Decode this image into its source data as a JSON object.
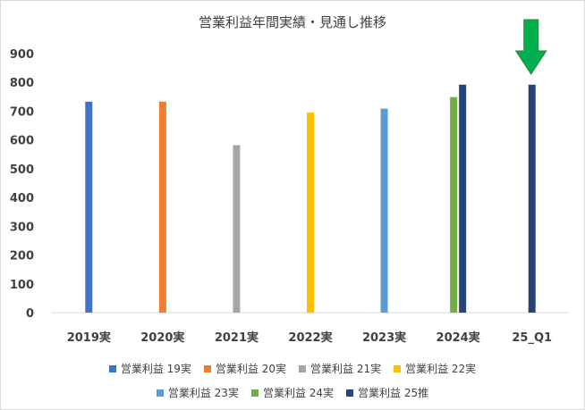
{
  "chart_data": {
    "type": "bar",
    "title": "営業利益年間実績・見通し推移",
    "xlabel": "",
    "ylabel": "",
    "ylim": [
      0,
      900
    ],
    "yticks": [
      0,
      100,
      200,
      300,
      400,
      500,
      600,
      700,
      800,
      900
    ],
    "grid": false,
    "legend_position": "bottom",
    "categories": [
      "2019実",
      "2020実",
      "2021実",
      "2022実",
      "2023実",
      "2024実",
      "25_Q1"
    ],
    "series": [
      {
        "name": "営業利益 19実",
        "color": "#4472c4",
        "values": [
          733,
          null,
          null,
          null,
          null,
          null,
          null
        ]
      },
      {
        "name": "営業利益 20実",
        "color": "#ed7d31",
        "values": [
          null,
          733,
          null,
          null,
          null,
          null,
          null
        ]
      },
      {
        "name": "営業利益 21実",
        "color": "#a5a5a5",
        "values": [
          null,
          null,
          582,
          null,
          null,
          null,
          null
        ]
      },
      {
        "name": "営業利益 22実",
        "color": "#ffc000",
        "values": [
          null,
          null,
          null,
          695,
          null,
          null,
          null
        ]
      },
      {
        "name": "営業利益 23実",
        "color": "#5b9bd5",
        "values": [
          null,
          null,
          null,
          null,
          709,
          null,
          null
        ]
      },
      {
        "name": "営業利益 24実",
        "color": "#70ad47",
        "values": [
          null,
          null,
          null,
          null,
          null,
          749,
          null
        ]
      },
      {
        "name": "営業利益 25推",
        "color": "#264478",
        "values": [
          null,
          null,
          null,
          null,
          null,
          792,
          792
        ]
      }
    ],
    "annotations": [
      {
        "type": "arrow",
        "icon": "down-arrow-icon",
        "color": "#00b050",
        "category": "25_Q1"
      }
    ]
  }
}
